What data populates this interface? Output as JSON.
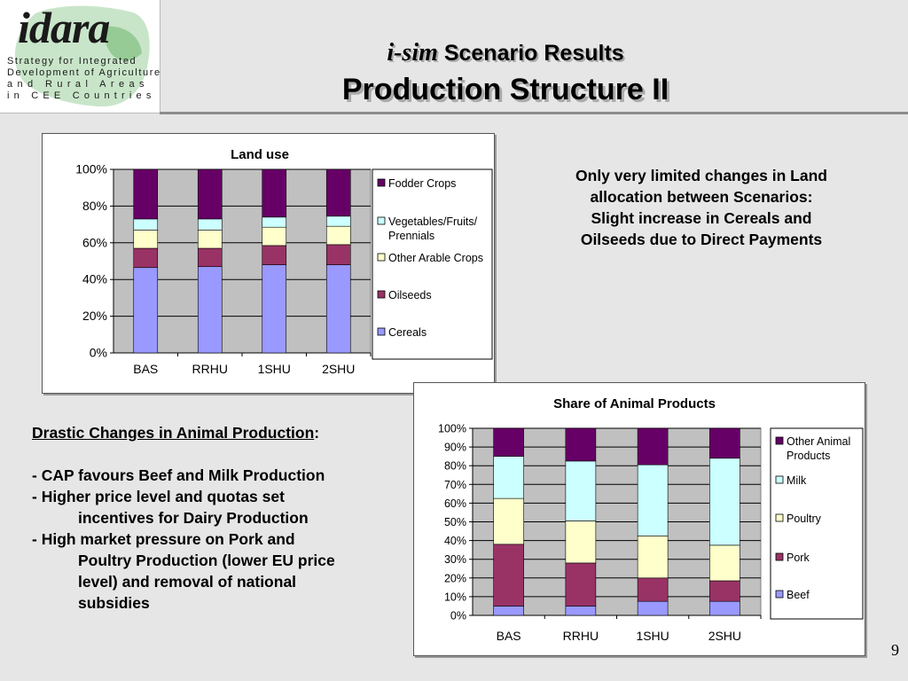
{
  "logo": {
    "word": "idara",
    "lines": [
      "Strategy for Integrated",
      "Development of Agriculture",
      "and Rural Areas",
      "in CEE Countries"
    ]
  },
  "title": {
    "prefix": "i-sim",
    "line1": "Scenario Results",
    "line2": "Production Structure II"
  },
  "note_right": {
    "lines": [
      "Only very limited changes in Land",
      "allocation between Scenarios:",
      "Slight increase in Cereals and",
      "Oilseeds due to Direct Payments"
    ]
  },
  "note_left": {
    "heading": "Drastic Changes in Animal Production",
    "heading_colon": ":",
    "b1": "- CAP favours Beef and Milk Production",
    "b2a": "- Higher price level and quotas set",
    "b2b": "incentives for Dairy Production",
    "b3a": "- High market pressure on Pork and",
    "b3b": "Poultry Production (lower EU price",
    "b3c": "level) and removal of national",
    "b3d": "subsidies"
  },
  "page_number": "9",
  "chart_data": [
    {
      "type": "bar",
      "stacked": "percent",
      "title": "Land use",
      "categories": [
        "BAS",
        "RRHU",
        "1SHU",
        "2SHU"
      ],
      "ylim": [
        0,
        100
      ],
      "yticks": [
        "0%",
        "20%",
        "40%",
        "60%",
        "80%",
        "100%"
      ],
      "grid": true,
      "legend": "right",
      "series": [
        {
          "name": "Cereals",
          "color": "#9999ff",
          "values": [
            46.5,
            47,
            48,
            48
          ]
        },
        {
          "name": "Oilseeds",
          "color": "#993366",
          "values": [
            10.5,
            10,
            10.5,
            11
          ]
        },
        {
          "name": "Other Arable Crops",
          "color": "#ffffcc",
          "values": [
            10,
            10,
            10,
            10
          ]
        },
        {
          "name": "Vegetables/Fruits/ Prennials",
          "color": "#ccffff",
          "values": [
            6,
            6,
            5.5,
            5.5
          ]
        },
        {
          "name": "Fodder Crops",
          "color": "#660066",
          "values": [
            27,
            27,
            26,
            25.5
          ]
        }
      ]
    },
    {
      "type": "bar",
      "stacked": "percent",
      "title": "Share of Animal Products",
      "categories": [
        "BAS",
        "RRHU",
        "1SHU",
        "2SHU"
      ],
      "ylim": [
        0,
        100
      ],
      "yticks": [
        "0%",
        "10%",
        "20%",
        "30%",
        "40%",
        "50%",
        "60%",
        "70%",
        "80%",
        "90%",
        "100%"
      ],
      "grid": true,
      "legend": "right",
      "series": [
        {
          "name": "Beef",
          "color": "#9999ff",
          "values": [
            5,
            5,
            7.5,
            7.5
          ]
        },
        {
          "name": "Pork",
          "color": "#993366",
          "values": [
            33,
            23,
            12.5,
            11
          ]
        },
        {
          "name": "Poultry",
          "color": "#ffffcc",
          "values": [
            24.5,
            22.5,
            22.5,
            19
          ]
        },
        {
          "name": "Milk",
          "color": "#ccffff",
          "values": [
            22.5,
            32,
            38,
            46.5
          ]
        },
        {
          "name": "Other Animal Products",
          "color": "#660066",
          "values": [
            15,
            17.5,
            19.5,
            16
          ]
        }
      ]
    }
  ]
}
